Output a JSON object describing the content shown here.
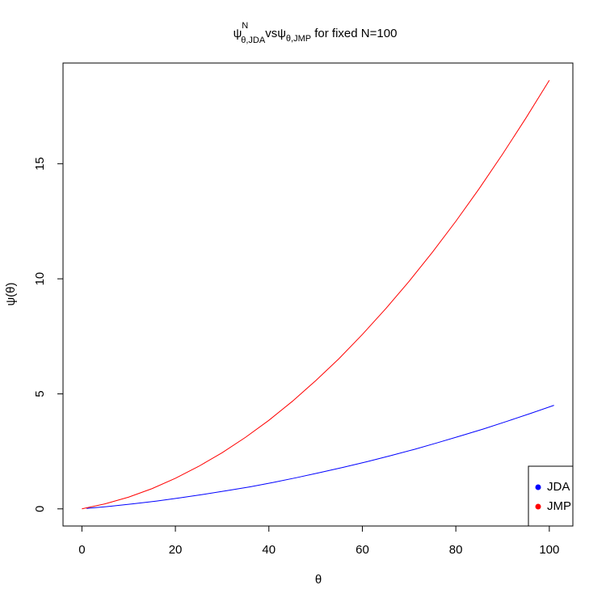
{
  "chart_data": {
    "type": "line",
    "title": [
      "ψ",
      "N",
      "θ,JDA",
      "vs",
      "ψ",
      "θ,JMP",
      " for fixed N=100"
    ],
    "x_label": "θ",
    "y_label": "ψ(θ)",
    "xlim": [
      -4.04,
      105.04
    ],
    "ylim": [
      -0.745,
      19.38
    ],
    "xticks": [
      0,
      20,
      40,
      60,
      80,
      100
    ],
    "yticks": [
      0,
      5,
      10,
      15
    ],
    "grid": false,
    "legend": "bottomright",
    "series": [
      {
        "name": "JDA",
        "color": "#0000ff",
        "x": [
          1,
          6,
          11,
          16,
          21,
          26,
          31,
          36,
          41,
          46,
          51,
          56,
          61,
          66,
          71,
          76,
          81,
          86,
          91,
          96,
          101
        ],
        "values": [
          0.02,
          0.11,
          0.22,
          0.34,
          0.48,
          0.63,
          0.79,
          0.96,
          1.15,
          1.36,
          1.58,
          1.81,
          2.05,
          2.31,
          2.58,
          2.87,
          3.17,
          3.48,
          3.81,
          4.15,
          4.5
        ]
      },
      {
        "name": "JMP",
        "color": "#ff0000",
        "x": [
          0,
          5,
          10,
          15,
          20,
          25,
          30,
          35,
          40,
          45,
          50,
          55,
          60,
          65,
          70,
          75,
          80,
          85,
          90,
          95,
          100
        ],
        "values": [
          0,
          0.22,
          0.51,
          0.88,
          1.33,
          1.85,
          2.44,
          3.11,
          3.85,
          4.67,
          5.57,
          6.53,
          7.58,
          8.7,
          9.89,
          11.16,
          12.5,
          13.92,
          15.42,
          16.99,
          18.63
        ]
      }
    ]
  }
}
